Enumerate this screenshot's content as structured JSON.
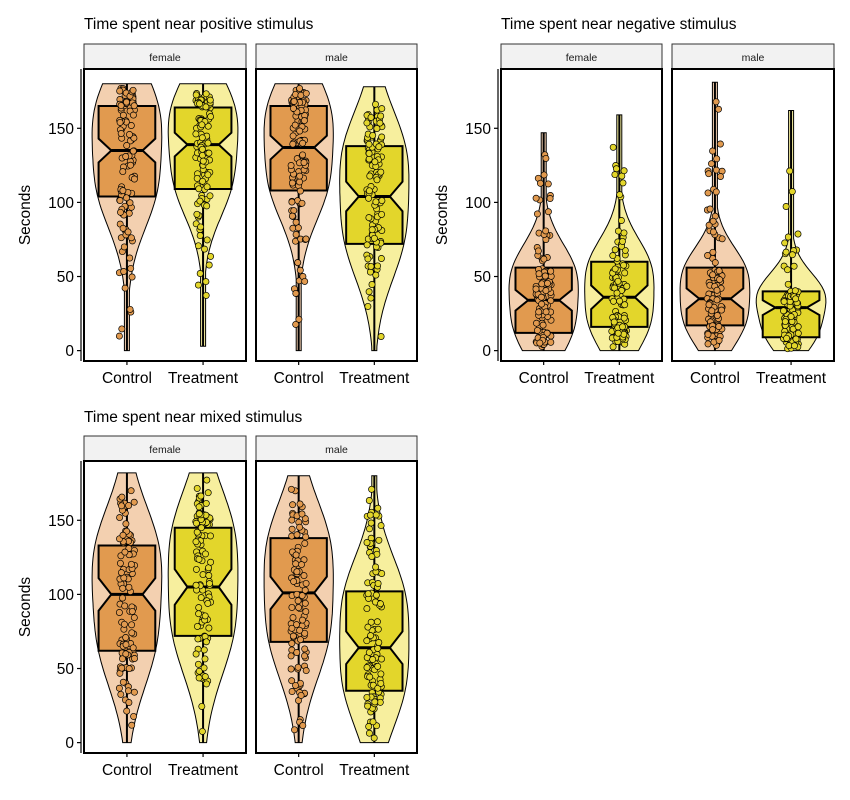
{
  "chart_data": [
    {
      "type": "violin+boxplot",
      "title": "Time spent near positive stimulus",
      "ylabel": "Seconds",
      "xlabel": "",
      "ylim": [
        -7,
        190
      ],
      "yticks": [
        0,
        50,
        100,
        150
      ],
      "categories": [
        "Control",
        "Treatment"
      ],
      "facets": [
        {
          "label": "female",
          "groups": [
            {
              "category": "Control",
              "min": 0,
              "q1": 104,
              "median": 135,
              "q3": 165,
              "max": 180,
              "notch_low": 127,
              "notch_high": 143
            },
            {
              "category": "Treatment",
              "min": 3,
              "q1": 109,
              "median": 139,
              "q3": 164,
              "max": 180,
              "notch_low": 131,
              "notch_high": 147
            }
          ]
        },
        {
          "label": "male",
          "groups": [
            {
              "category": "Control",
              "min": 0,
              "q1": 108,
              "median": 137,
              "q3": 165,
              "max": 180,
              "notch_low": 129,
              "notch_high": 145
            },
            {
              "category": "Treatment",
              "min": 0,
              "q1": 72,
              "median": 104,
              "q3": 138,
              "max": 178,
              "notch_low": 94,
              "notch_high": 114
            }
          ]
        }
      ]
    },
    {
      "type": "violin+boxplot",
      "title": "Time spent near negative stimulus",
      "ylabel": "Seconds",
      "xlabel": "",
      "ylim": [
        -7,
        190
      ],
      "yticks": [
        0,
        50,
        100,
        150
      ],
      "categories": [
        "Control",
        "Treatment"
      ],
      "facets": [
        {
          "label": "female",
          "groups": [
            {
              "category": "Control",
              "min": 0,
              "q1": 12,
              "median": 34,
              "q3": 56,
              "max": 147,
              "notch_low": 27,
              "notch_high": 41
            },
            {
              "category": "Treatment",
              "min": 0,
              "q1": 16,
              "median": 36,
              "q3": 60,
              "max": 159,
              "notch_low": 28,
              "notch_high": 44
            }
          ]
        },
        {
          "label": "male",
          "groups": [
            {
              "category": "Control",
              "min": 0,
              "q1": 17,
              "median": 35,
              "q3": 56,
              "max": 181,
              "notch_low": 28,
              "notch_high": 42
            },
            {
              "category": "Treatment",
              "min": 0,
              "q1": 9,
              "median": 29,
              "q3": 40,
              "max": 162,
              "notch_low": 24,
              "notch_high": 34
            }
          ]
        }
      ]
    },
    {
      "type": "violin+boxplot",
      "title": "Time spent near mixed stimulus",
      "ylabel": "Seconds",
      "xlabel": "",
      "ylim": [
        -7,
        190
      ],
      "yticks": [
        0,
        50,
        100,
        150
      ],
      "categories": [
        "Control",
        "Treatment"
      ],
      "facets": [
        {
          "label": "female",
          "groups": [
            {
              "category": "Control",
              "min": 0,
              "q1": 62,
              "median": 100,
              "q3": 133,
              "max": 182,
              "notch_low": 89,
              "notch_high": 111
            },
            {
              "category": "Treatment",
              "min": 0,
              "q1": 72,
              "median": 105,
              "q3": 145,
              "max": 182,
              "notch_low": 93,
              "notch_high": 117
            }
          ]
        },
        {
          "label": "male",
          "groups": [
            {
              "category": "Control",
              "min": 0,
              "q1": 68,
              "median": 101,
              "q3": 138,
              "max": 180,
              "notch_low": 90,
              "notch_high": 112
            },
            {
              "category": "Treatment",
              "min": 0,
              "q1": 35,
              "median": 64,
              "q3": 102,
              "max": 180,
              "notch_low": 53,
              "notch_high": 75
            }
          ]
        }
      ]
    }
  ],
  "colors": {
    "control_box": "#e19a4f",
    "control_violin": "#f3d0b0",
    "treatment_box": "#e3d62b",
    "treatment_violin": "#f7ef9e",
    "strip_fill": "#f2f2f2",
    "outline": "#000000"
  }
}
